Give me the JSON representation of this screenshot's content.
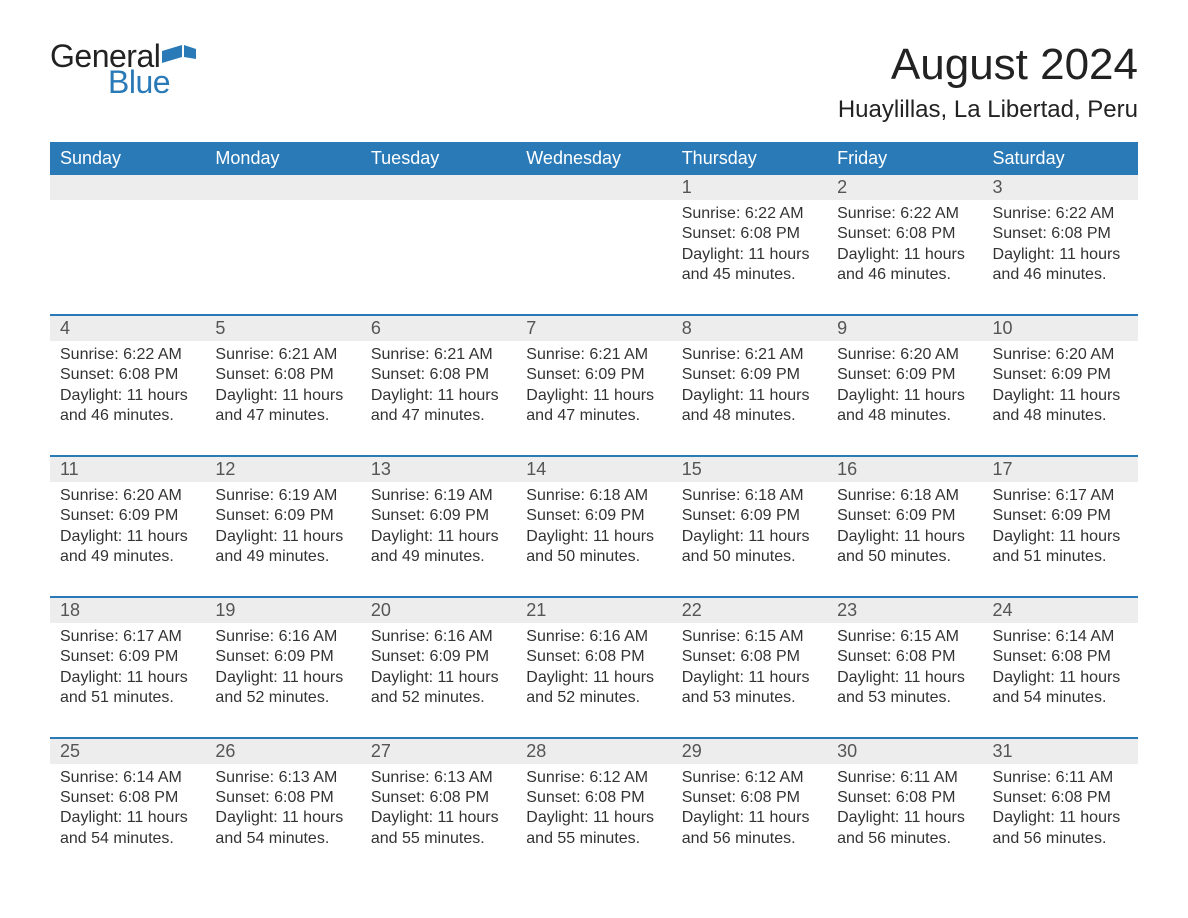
{
  "logo": {
    "part1": "General",
    "part2": "Blue",
    "flag_color": "#2a7ab8"
  },
  "title": "August 2024",
  "location": "Huaylillas, La Libertad, Peru",
  "colors": {
    "header_bg": "#2a7ab8",
    "header_text": "#ffffff",
    "daynum_bg": "#ededed",
    "text": "#333333",
    "border": "#2a7ab8",
    "title_text": "#222222"
  },
  "typography": {
    "title_fontsize": 44,
    "location_fontsize": 24,
    "header_fontsize": 18,
    "daynum_fontsize": 18,
    "content_fontsize": 16
  },
  "day_names": [
    "Sunday",
    "Monday",
    "Tuesday",
    "Wednesday",
    "Thursday",
    "Friday",
    "Saturday"
  ],
  "weeks": [
    [
      null,
      null,
      null,
      null,
      {
        "n": "1",
        "sunrise": "6:22 AM",
        "sunset": "6:08 PM",
        "dl_h": "11",
        "dl_m": "45"
      },
      {
        "n": "2",
        "sunrise": "6:22 AM",
        "sunset": "6:08 PM",
        "dl_h": "11",
        "dl_m": "46"
      },
      {
        "n": "3",
        "sunrise": "6:22 AM",
        "sunset": "6:08 PM",
        "dl_h": "11",
        "dl_m": "46"
      }
    ],
    [
      {
        "n": "4",
        "sunrise": "6:22 AM",
        "sunset": "6:08 PM",
        "dl_h": "11",
        "dl_m": "46"
      },
      {
        "n": "5",
        "sunrise": "6:21 AM",
        "sunset": "6:08 PM",
        "dl_h": "11",
        "dl_m": "47"
      },
      {
        "n": "6",
        "sunrise": "6:21 AM",
        "sunset": "6:08 PM",
        "dl_h": "11",
        "dl_m": "47"
      },
      {
        "n": "7",
        "sunrise": "6:21 AM",
        "sunset": "6:09 PM",
        "dl_h": "11",
        "dl_m": "47"
      },
      {
        "n": "8",
        "sunrise": "6:21 AM",
        "sunset": "6:09 PM",
        "dl_h": "11",
        "dl_m": "48"
      },
      {
        "n": "9",
        "sunrise": "6:20 AM",
        "sunset": "6:09 PM",
        "dl_h": "11",
        "dl_m": "48"
      },
      {
        "n": "10",
        "sunrise": "6:20 AM",
        "sunset": "6:09 PM",
        "dl_h": "11",
        "dl_m": "48"
      }
    ],
    [
      {
        "n": "11",
        "sunrise": "6:20 AM",
        "sunset": "6:09 PM",
        "dl_h": "11",
        "dl_m": "49"
      },
      {
        "n": "12",
        "sunrise": "6:19 AM",
        "sunset": "6:09 PM",
        "dl_h": "11",
        "dl_m": "49"
      },
      {
        "n": "13",
        "sunrise": "6:19 AM",
        "sunset": "6:09 PM",
        "dl_h": "11",
        "dl_m": "49"
      },
      {
        "n": "14",
        "sunrise": "6:18 AM",
        "sunset": "6:09 PM",
        "dl_h": "11",
        "dl_m": "50"
      },
      {
        "n": "15",
        "sunrise": "6:18 AM",
        "sunset": "6:09 PM",
        "dl_h": "11",
        "dl_m": "50"
      },
      {
        "n": "16",
        "sunrise": "6:18 AM",
        "sunset": "6:09 PM",
        "dl_h": "11",
        "dl_m": "50"
      },
      {
        "n": "17",
        "sunrise": "6:17 AM",
        "sunset": "6:09 PM",
        "dl_h": "11",
        "dl_m": "51"
      }
    ],
    [
      {
        "n": "18",
        "sunrise": "6:17 AM",
        "sunset": "6:09 PM",
        "dl_h": "11",
        "dl_m": "51"
      },
      {
        "n": "19",
        "sunrise": "6:16 AM",
        "sunset": "6:09 PM",
        "dl_h": "11",
        "dl_m": "52"
      },
      {
        "n": "20",
        "sunrise": "6:16 AM",
        "sunset": "6:09 PM",
        "dl_h": "11",
        "dl_m": "52"
      },
      {
        "n": "21",
        "sunrise": "6:16 AM",
        "sunset": "6:08 PM",
        "dl_h": "11",
        "dl_m": "52"
      },
      {
        "n": "22",
        "sunrise": "6:15 AM",
        "sunset": "6:08 PM",
        "dl_h": "11",
        "dl_m": "53"
      },
      {
        "n": "23",
        "sunrise": "6:15 AM",
        "sunset": "6:08 PM",
        "dl_h": "11",
        "dl_m": "53"
      },
      {
        "n": "24",
        "sunrise": "6:14 AM",
        "sunset": "6:08 PM",
        "dl_h": "11",
        "dl_m": "54"
      }
    ],
    [
      {
        "n": "25",
        "sunrise": "6:14 AM",
        "sunset": "6:08 PM",
        "dl_h": "11",
        "dl_m": "54"
      },
      {
        "n": "26",
        "sunrise": "6:13 AM",
        "sunset": "6:08 PM",
        "dl_h": "11",
        "dl_m": "54"
      },
      {
        "n": "27",
        "sunrise": "6:13 AM",
        "sunset": "6:08 PM",
        "dl_h": "11",
        "dl_m": "55"
      },
      {
        "n": "28",
        "sunrise": "6:12 AM",
        "sunset": "6:08 PM",
        "dl_h": "11",
        "dl_m": "55"
      },
      {
        "n": "29",
        "sunrise": "6:12 AM",
        "sunset": "6:08 PM",
        "dl_h": "11",
        "dl_m": "56"
      },
      {
        "n": "30",
        "sunrise": "6:11 AM",
        "sunset": "6:08 PM",
        "dl_h": "11",
        "dl_m": "56"
      },
      {
        "n": "31",
        "sunrise": "6:11 AM",
        "sunset": "6:08 PM",
        "dl_h": "11",
        "dl_m": "56"
      }
    ]
  ],
  "labels": {
    "sunrise_prefix": "Sunrise: ",
    "sunset_prefix": "Sunset: ",
    "daylight_prefix": "Daylight: ",
    "hours_word": " hours",
    "and_word": "and ",
    "minutes_word": " minutes."
  }
}
